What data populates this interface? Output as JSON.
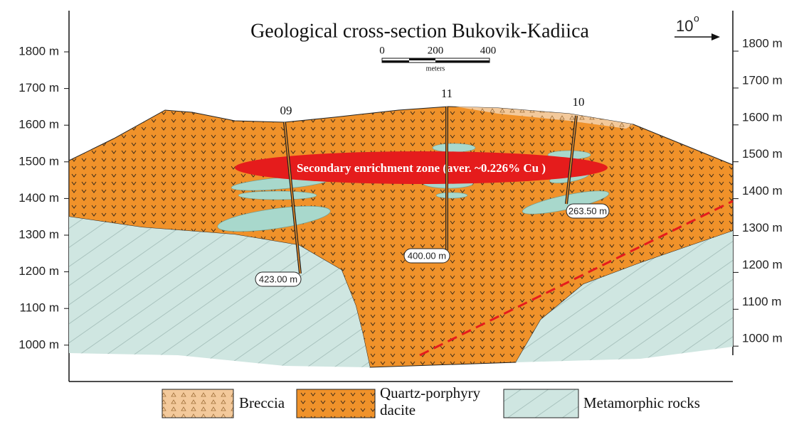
{
  "title": "Geological cross-section Bukovik-Kadiica",
  "direction": {
    "angle": "10",
    "degree_mark": "o"
  },
  "scale_bar": {
    "ticks": [
      "0",
      "200",
      "400"
    ],
    "unit": "meters"
  },
  "left_axis": {
    "labels": [
      "1800 m",
      "1700 m",
      "1600 m",
      "1500 m",
      "1400 m",
      "1300 m",
      "1200 m",
      "1100 m",
      "1000 m"
    ]
  },
  "right_axis": {
    "labels": [
      "1800 m",
      "1700 m",
      "1600 m",
      "1500 m",
      "1400 m",
      "1300 m",
      "1200 m",
      "1100 m",
      "1000 m"
    ]
  },
  "zone_label": "Secondary enrichment zone (aver. ~0.226% Cu )",
  "boreholes": [
    {
      "name": "09",
      "depth": "423.00 m"
    },
    {
      "name": "11",
      "depth": "400.00 m"
    },
    {
      "name": "10",
      "depth": "263.50 m"
    }
  ],
  "legend": {
    "breccia": "Breccia",
    "dacite": [
      "Quartz-porphyry",
      "dacite"
    ],
    "metamorphic": "Metamorphic rocks"
  }
}
